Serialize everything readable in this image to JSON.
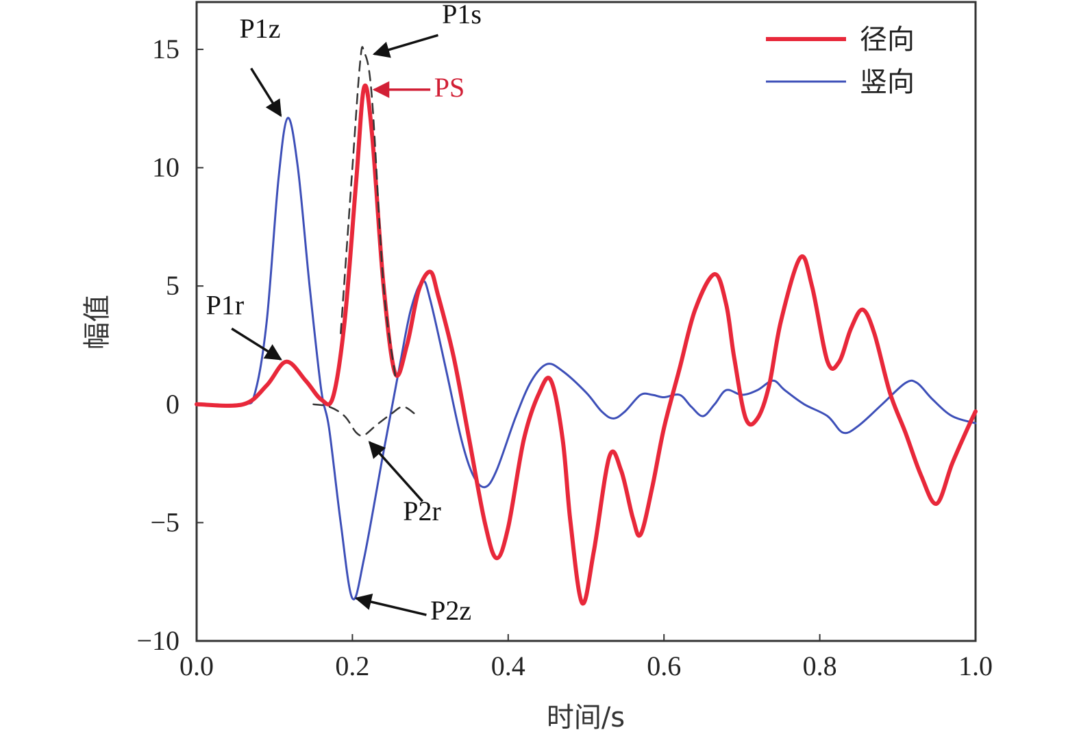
{
  "chart_data": {
    "type": "line",
    "xlabel": "时间/s",
    "ylabel": "幅值",
    "xlim": [
      0.0,
      1.0
    ],
    "ylim": [
      -10,
      17
    ],
    "x_ticks": [
      "0.0",
      "0.2",
      "0.4",
      "0.6",
      "0.8",
      "1.0"
    ],
    "x_tick_values": [
      0.0,
      0.2,
      0.4,
      0.6,
      0.8,
      1.0
    ],
    "y_ticks": [
      "15",
      "10",
      "5",
      "0",
      "−5",
      "−10"
    ],
    "y_tick_values": [
      15,
      10,
      5,
      0,
      -5,
      -10
    ],
    "legend_position": "top-right",
    "series": [
      {
        "name": "径向",
        "color": "#e8283a",
        "points": [
          [
            0.0,
            0
          ],
          [
            0.06,
            0
          ],
          [
            0.09,
            0.8
          ],
          [
            0.115,
            1.8
          ],
          [
            0.14,
            1.0
          ],
          [
            0.16,
            0.2
          ],
          [
            0.175,
            0.3
          ],
          [
            0.19,
            3.5
          ],
          [
            0.205,
            9.5
          ],
          [
            0.215,
            13.4
          ],
          [
            0.225,
            11.5
          ],
          [
            0.24,
            5.0
          ],
          [
            0.255,
            1.3
          ],
          [
            0.27,
            2.5
          ],
          [
            0.285,
            4.8
          ],
          [
            0.3,
            5.6
          ],
          [
            0.31,
            4.6
          ],
          [
            0.33,
            2.0
          ],
          [
            0.35,
            -1.5
          ],
          [
            0.37,
            -5.0
          ],
          [
            0.385,
            -6.5
          ],
          [
            0.4,
            -5.2
          ],
          [
            0.42,
            -1.5
          ],
          [
            0.44,
            0.5
          ],
          [
            0.455,
            1.0
          ],
          [
            0.47,
            -1.5
          ],
          [
            0.48,
            -5.0
          ],
          [
            0.495,
            -8.4
          ],
          [
            0.51,
            -6.2
          ],
          [
            0.53,
            -2.2
          ],
          [
            0.545,
            -2.8
          ],
          [
            0.56,
            -4.8
          ],
          [
            0.57,
            -5.5
          ],
          [
            0.585,
            -3.5
          ],
          [
            0.6,
            -1.0
          ],
          [
            0.62,
            1.5
          ],
          [
            0.64,
            4.0
          ],
          [
            0.665,
            5.5
          ],
          [
            0.68,
            4.2
          ],
          [
            0.69,
            2.0
          ],
          [
            0.705,
            -0.6
          ],
          [
            0.72,
            -0.6
          ],
          [
            0.735,
            0.8
          ],
          [
            0.75,
            3.5
          ],
          [
            0.775,
            6.2
          ],
          [
            0.79,
            5.0
          ],
          [
            0.81,
            1.8
          ],
          [
            0.825,
            1.8
          ],
          [
            0.84,
            3.2
          ],
          [
            0.855,
            4.0
          ],
          [
            0.87,
            3.0
          ],
          [
            0.89,
            0.5
          ],
          [
            0.91,
            -1.2
          ],
          [
            0.93,
            -3.0
          ],
          [
            0.95,
            -4.2
          ],
          [
            0.97,
            -2.5
          ],
          [
            0.99,
            -1.0
          ],
          [
            1.0,
            -0.3
          ]
        ]
      },
      {
        "name": "竖向",
        "color": "#3d4fb8",
        "points": [
          [
            0.0,
            0
          ],
          [
            0.06,
            0
          ],
          [
            0.075,
            0.5
          ],
          [
            0.09,
            3.5
          ],
          [
            0.105,
            9.5
          ],
          [
            0.117,
            12.1
          ],
          [
            0.13,
            10.0
          ],
          [
            0.145,
            5.0
          ],
          [
            0.16,
            0.6
          ],
          [
            0.17,
            -1.0
          ],
          [
            0.185,
            -5.0
          ],
          [
            0.2,
            -8.2
          ],
          [
            0.215,
            -6.5
          ],
          [
            0.24,
            -2.0
          ],
          [
            0.26,
            1.5
          ],
          [
            0.275,
            4.0
          ],
          [
            0.29,
            5.2
          ],
          [
            0.3,
            4.4
          ],
          [
            0.32,
            1.5
          ],
          [
            0.34,
            -1.5
          ],
          [
            0.355,
            -3.0
          ],
          [
            0.37,
            -3.5
          ],
          [
            0.385,
            -2.8
          ],
          [
            0.41,
            -0.5
          ],
          [
            0.43,
            1.0
          ],
          [
            0.45,
            1.7
          ],
          [
            0.47,
            1.4
          ],
          [
            0.5,
            0.5
          ],
          [
            0.52,
            -0.3
          ],
          [
            0.535,
            -0.6
          ],
          [
            0.55,
            -0.3
          ],
          [
            0.57,
            0.4
          ],
          [
            0.585,
            0.4
          ],
          [
            0.6,
            0.3
          ],
          [
            0.62,
            0.4
          ],
          [
            0.635,
            -0.1
          ],
          [
            0.65,
            -0.5
          ],
          [
            0.665,
            0.0
          ],
          [
            0.68,
            0.6
          ],
          [
            0.7,
            0.4
          ],
          [
            0.72,
            0.6
          ],
          [
            0.74,
            1.0
          ],
          [
            0.755,
            0.6
          ],
          [
            0.78,
            0.0
          ],
          [
            0.81,
            -0.5
          ],
          [
            0.83,
            -1.2
          ],
          [
            0.85,
            -0.9
          ],
          [
            0.88,
            0.0
          ],
          [
            0.91,
            0.9
          ],
          [
            0.925,
            0.9
          ],
          [
            0.945,
            0.2
          ],
          [
            0.97,
            -0.5
          ],
          [
            1.0,
            -0.8
          ]
        ]
      },
      {
        "name": "",
        "color": "#333333",
        "dashed": true,
        "points": [
          [
            0.185,
            3.0
          ],
          [
            0.2,
            10.0
          ],
          [
            0.21,
            14.5
          ],
          [
            0.215,
            14.9
          ],
          [
            0.225,
            13.0
          ],
          [
            0.24,
            5.0
          ],
          [
            0.255,
            1.2
          ]
        ]
      },
      {
        "name": "",
        "color": "#333333",
        "dashed": true,
        "points": [
          [
            0.15,
            0
          ],
          [
            0.17,
            -0.1
          ],
          [
            0.19,
            -0.5
          ],
          [
            0.205,
            -1.2
          ],
          [
            0.215,
            -1.3
          ],
          [
            0.23,
            -0.9
          ],
          [
            0.25,
            -0.4
          ],
          [
            0.265,
            -0.1
          ],
          [
            0.28,
            -0.4
          ]
        ]
      }
    ],
    "annotations": [
      {
        "text": "P1z",
        "color": "#111111",
        "tx": 0.055,
        "ty": 15.5,
        "ax1": 0.07,
        "ay1": 14.2,
        "ax2": 0.108,
        "ay2": 12.2
      },
      {
        "text": "P1s",
        "color": "#111111",
        "tx": 0.315,
        "ty": 16.1,
        "ax1": 0.31,
        "ay1": 15.6,
        "ax2": 0.228,
        "ay2": 14.8
      },
      {
        "text": "PS",
        "color": "#d11f35",
        "tx": 0.305,
        "ty": 13.0,
        "ax1": 0.3,
        "ay1": 13.3,
        "ax2": 0.228,
        "ay2": 13.3
      },
      {
        "text": "P1r",
        "color": "#111111",
        "tx": 0.012,
        "ty": 3.8,
        "ax1": 0.045,
        "ay1": 3.2,
        "ax2": 0.108,
        "ay2": 1.9
      },
      {
        "text": "P2r",
        "color": "#111111",
        "tx": 0.265,
        "ty": -4.9,
        "ax1": 0.29,
        "ay1": -4.1,
        "ax2": 0.222,
        "ay2": -1.6
      },
      {
        "text": "P2z",
        "color": "#111111",
        "tx": 0.3,
        "ty": -9.1,
        "ax1": 0.295,
        "ay1": -8.9,
        "ax2": 0.205,
        "ay2": -8.2
      }
    ]
  }
}
